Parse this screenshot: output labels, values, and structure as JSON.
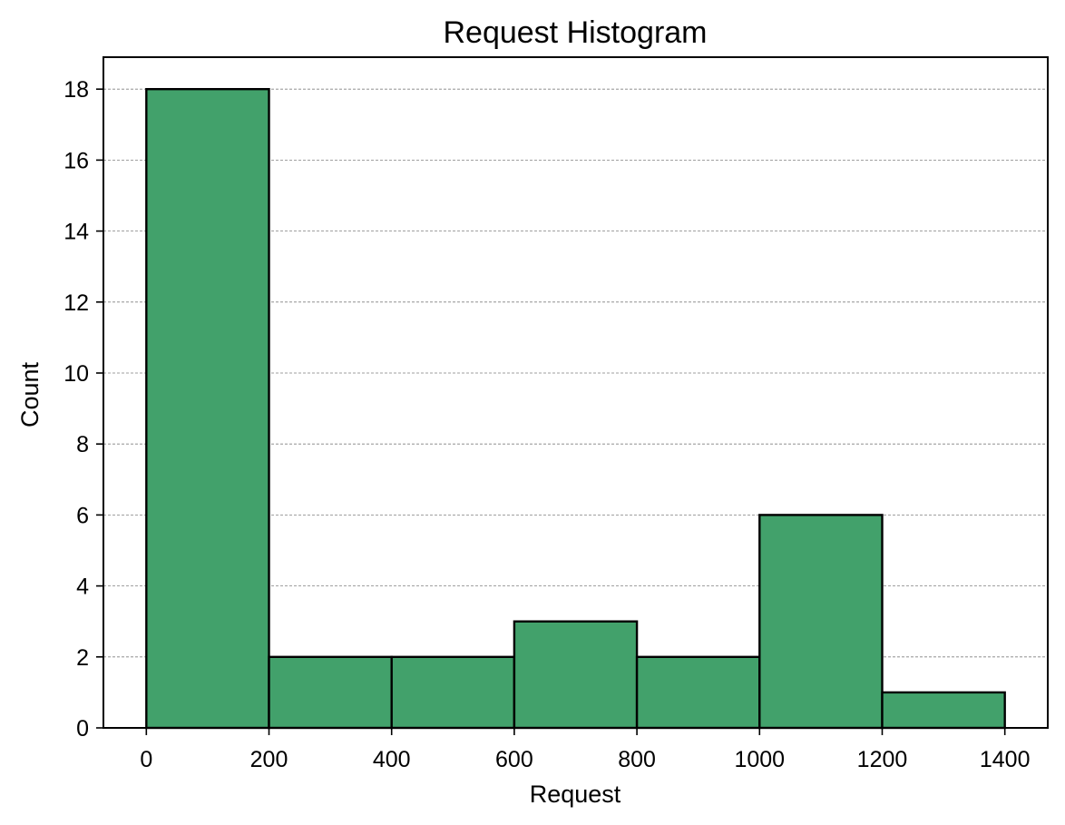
{
  "chart_data": {
    "type": "bar",
    "subtype": "histogram",
    "title": "Request Histogram",
    "xlabel": "Request",
    "ylabel": "Count",
    "bins": [
      {
        "start": 0,
        "end": 200,
        "count": 18
      },
      {
        "start": 200,
        "end": 400,
        "count": 2
      },
      {
        "start": 400,
        "end": 600,
        "count": 2
      },
      {
        "start": 600,
        "end": 800,
        "count": 3
      },
      {
        "start": 800,
        "end": 1000,
        "count": 2
      },
      {
        "start": 1000,
        "end": 1200,
        "count": 6
      },
      {
        "start": 1200,
        "end": 1400,
        "count": 1
      }
    ],
    "xlim": [
      -70,
      1470
    ],
    "ylim": [
      0,
      18.9
    ],
    "xticks": [
      0,
      200,
      400,
      600,
      800,
      1000,
      1200,
      1400
    ],
    "yticks": [
      0,
      2,
      4,
      6,
      8,
      10,
      12,
      14,
      16,
      18
    ],
    "grid": {
      "y": true,
      "x": false,
      "style": "dashed"
    },
    "bar_color": "#42a16b",
    "edge_color": "#000000",
    "grid_color": "#808080"
  }
}
